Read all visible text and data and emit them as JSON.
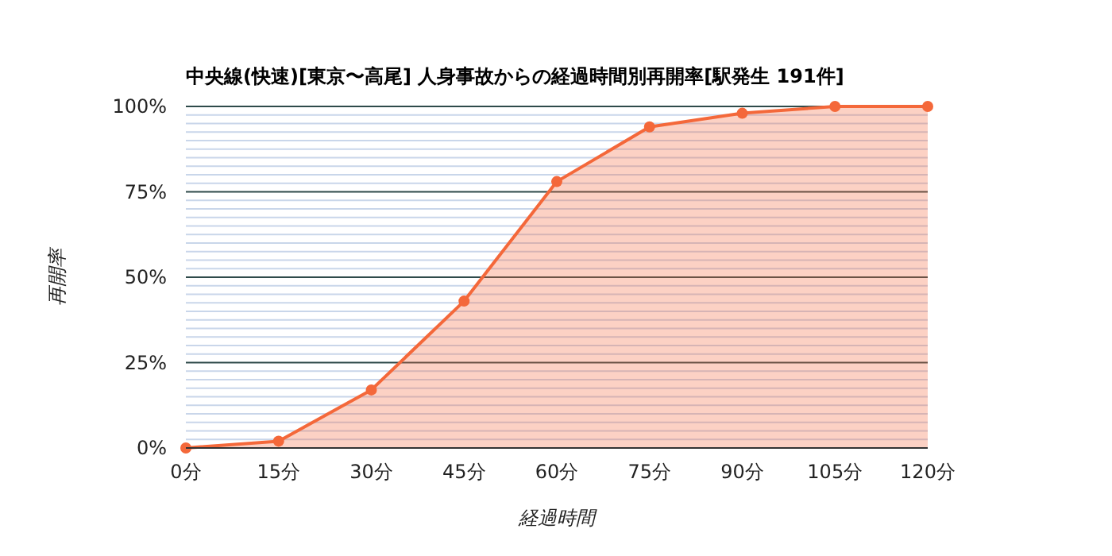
{
  "chart_data": {
    "type": "area",
    "title": "中央線(快速)[東京〜高尾]  人身事故からの経過時間別再開率[駅発生 191件]",
    "xlabel": "経過時間",
    "ylabel": "再開率",
    "x": [
      0,
      15,
      30,
      45,
      60,
      75,
      90,
      105,
      120
    ],
    "series": [
      {
        "color": "#f4683a",
        "values": [
          0,
          2,
          17,
          43,
          78,
          94,
          98,
          100,
          100
        ]
      }
    ],
    "xlim": [
      0,
      120
    ],
    "xticks": [
      {
        "value": 0,
        "label": "0分"
      },
      {
        "value": 15,
        "label": "15分"
      },
      {
        "value": 30,
        "label": "30分"
      },
      {
        "value": 45,
        "label": "45分"
      },
      {
        "value": 60,
        "label": "60分"
      },
      {
        "value": 75,
        "label": "75分"
      },
      {
        "value": 90,
        "label": "90分"
      },
      {
        "value": 105,
        "label": "105分"
      },
      {
        "value": 120,
        "label": "120分"
      }
    ],
    "ylim": [
      0,
      100
    ],
    "yticks": [
      {
        "value": 0,
        "label": "0%"
      },
      {
        "value": 2.5,
        "label": null
      },
      {
        "value": 5,
        "label": null
      },
      {
        "value": 7.5,
        "label": null
      },
      {
        "value": 10,
        "label": null
      },
      {
        "value": 12.5,
        "label": null
      },
      {
        "value": 15,
        "label": null
      },
      {
        "value": 17.5,
        "label": null
      },
      {
        "value": 20,
        "label": null
      },
      {
        "value": 22.5,
        "label": null
      },
      {
        "value": 25,
        "label": "25%"
      },
      {
        "value": 27.5,
        "label": null
      },
      {
        "value": 30,
        "label": null
      },
      {
        "value": 32.5,
        "label": null
      },
      {
        "value": 35,
        "label": null
      },
      {
        "value": 37.5,
        "label": null
      },
      {
        "value": 40,
        "label": null
      },
      {
        "value": 42.5,
        "label": null
      },
      {
        "value": 45,
        "label": null
      },
      {
        "value": 47.5,
        "label": null
      },
      {
        "value": 50,
        "label": "50%"
      },
      {
        "value": 52.5,
        "label": null
      },
      {
        "value": 55,
        "label": null
      },
      {
        "value": 57.5,
        "label": null
      },
      {
        "value": 60,
        "label": null
      },
      {
        "value": 62.5,
        "label": null
      },
      {
        "value": 65,
        "label": null
      },
      {
        "value": 67.5,
        "label": null
      },
      {
        "value": 70,
        "label": null
      },
      {
        "value": 72.5,
        "label": null
      },
      {
        "value": 75,
        "label": "75%"
      },
      {
        "value": 77.5,
        "label": null
      },
      {
        "value": 80,
        "label": null
      },
      {
        "value": 82.5,
        "label": null
      },
      {
        "value": 85,
        "label": null
      },
      {
        "value": 87.5,
        "label": null
      },
      {
        "value": 90,
        "label": null
      },
      {
        "value": 92.5,
        "label": null
      },
      {
        "value": 95,
        "label": null
      },
      {
        "value": 97.5,
        "label": null
      },
      {
        "value": 100,
        "label": "100%"
      }
    ],
    "grid": true,
    "marker": "circle"
  }
}
